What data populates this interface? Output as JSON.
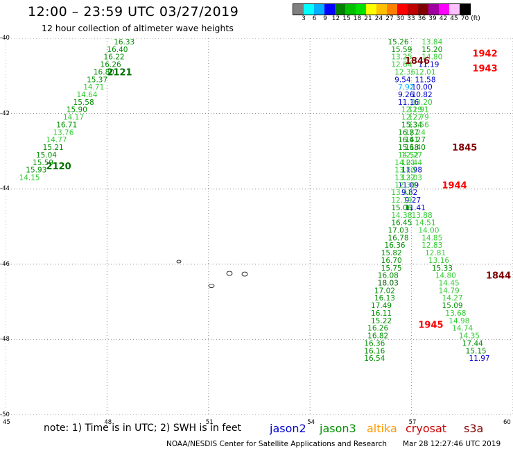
{
  "header": {
    "title": "12:00 – 23:59 UTC 03/27/2019",
    "subtitle": "12 hour collection of altimeter wave heights"
  },
  "legend": {
    "unit": "(ft)",
    "colors": [
      "#808080",
      "#00ffff",
      "#00b0ff",
      "#0000ff",
      "#008000",
      "#00c000",
      "#00e000",
      "#ffff00",
      "#ffc000",
      "#ff8000",
      "#ff0000",
      "#c00000",
      "#800000",
      "#a000a0",
      "#ff00ff",
      "#ffc0ff",
      "#000000"
    ],
    "ticks": [
      "3",
      "6",
      "9",
      "12",
      "15",
      "18",
      "21",
      "24",
      "27",
      "30",
      "33",
      "36",
      "39",
      "42",
      "45",
      "70"
    ]
  },
  "axes": {
    "lon": [
      45,
      48,
      51,
      54,
      57,
      60
    ],
    "lat": [
      -40,
      -42,
      -44,
      -46,
      -48,
      -50
    ]
  },
  "chart_data": {
    "type": "scatter",
    "xlim": [
      45,
      60
    ],
    "ylim": [
      -50,
      -40
    ],
    "grid": true,
    "time_labels": [
      {
        "text": "2121",
        "lon": 48.0,
        "lat": -40.8,
        "color": "#007000"
      },
      {
        "text": "2120",
        "lon": 46.2,
        "lat": -43.3,
        "color": "#007000"
      },
      {
        "text": "1846",
        "lon": 56.8,
        "lat": -40.5,
        "color": "#800000"
      },
      {
        "text": "1942",
        "lon": 58.8,
        "lat": -40.3,
        "color": "#ff0000"
      },
      {
        "text": "1943",
        "lon": 58.8,
        "lat": -40.7,
        "color": "#ff0000"
      },
      {
        "text": "1845",
        "lon": 58.2,
        "lat": -42.8,
        "color": "#800000"
      },
      {
        "text": "1944",
        "lon": 57.9,
        "lat": -43.8,
        "color": "#ff0000"
      },
      {
        "text": "1844",
        "lon": 59.2,
        "lat": -46.2,
        "color": "#800000"
      },
      {
        "text": "1945",
        "lon": 57.2,
        "lat": -47.5,
        "color": "#ff0000"
      }
    ],
    "observations": [
      {
        "lon": 48.2,
        "lat": -40.0,
        "swh": 16.33
      },
      {
        "lon": 48.0,
        "lat": -40.2,
        "swh": 16.4
      },
      {
        "lon": 47.9,
        "lat": -40.4,
        "swh": 16.22
      },
      {
        "lon": 47.8,
        "lat": -40.6,
        "swh": 16.26
      },
      {
        "lon": 47.6,
        "lat": -40.8,
        "swh": 16.8
      },
      {
        "lon": 47.4,
        "lat": -41.0,
        "swh": 15.37
      },
      {
        "lon": 47.3,
        "lat": -41.2,
        "swh": 14.71
      },
      {
        "lon": 47.1,
        "lat": -41.4,
        "swh": 14.64
      },
      {
        "lon": 47.0,
        "lat": -41.6,
        "swh": 15.58
      },
      {
        "lon": 46.8,
        "lat": -41.8,
        "swh": 15.9
      },
      {
        "lon": 46.7,
        "lat": -42.0,
        "swh": 14.17
      },
      {
        "lon": 46.5,
        "lat": -42.2,
        "swh": 16.71
      },
      {
        "lon": 46.4,
        "lat": -42.4,
        "swh": 13.76
      },
      {
        "lon": 46.2,
        "lat": -42.6,
        "swh": 14.77
      },
      {
        "lon": 46.1,
        "lat": -42.8,
        "swh": 15.21
      },
      {
        "lon": 45.9,
        "lat": -43.0,
        "swh": 15.04
      },
      {
        "lon": 45.8,
        "lat": -43.2,
        "swh": 15.59
      },
      {
        "lon": 45.6,
        "lat": -43.4,
        "swh": 15.93
      },
      {
        "lon": 45.4,
        "lat": -43.6,
        "swh": 14.15
      },
      {
        "lon": 57.3,
        "lat": -40.0,
        "swh": 13.84
      },
      {
        "lon": 57.3,
        "lat": -40.2,
        "swh": 15.2
      },
      {
        "lon": 57.3,
        "lat": -40.4,
        "swh": 14.8
      },
      {
        "lon": 57.2,
        "lat": -40.6,
        "swh": 11.19
      },
      {
        "lon": 57.1,
        "lat": -40.8,
        "swh": 12.01
      },
      {
        "lon": 57.1,
        "lat": -41.0,
        "swh": 11.58
      },
      {
        "lon": 57.0,
        "lat": -41.2,
        "swh": 10.0
      },
      {
        "lon": 57.0,
        "lat": -41.4,
        "swh": 10.82
      },
      {
        "lon": 57.0,
        "lat": -41.6,
        "swh": 13.2
      },
      {
        "lon": 56.9,
        "lat": -41.8,
        "swh": 12.91
      },
      {
        "lon": 56.9,
        "lat": -42.0,
        "swh": 12.79
      },
      {
        "lon": 56.9,
        "lat": -42.2,
        "swh": 13.56
      },
      {
        "lon": 56.8,
        "lat": -42.4,
        "swh": 12.24
      },
      {
        "lon": 56.8,
        "lat": -42.6,
        "swh": 16.27
      },
      {
        "lon": 56.8,
        "lat": -42.8,
        "swh": 16.4
      },
      {
        "lon": 56.7,
        "lat": -43.0,
        "swh": 12.27
      },
      {
        "lon": 56.7,
        "lat": -43.2,
        "swh": 12.44
      },
      {
        "lon": 56.7,
        "lat": -43.4,
        "swh": 11.98
      },
      {
        "lon": 56.7,
        "lat": -43.6,
        "swh": 12.03
      },
      {
        "lon": 56.6,
        "lat": -43.8,
        "swh": 11.09
      },
      {
        "lon": 56.7,
        "lat": -44.0,
        "swh": 9.82
      },
      {
        "lon": 56.8,
        "lat": -44.2,
        "swh": 9.27
      },
      {
        "lon": 56.8,
        "lat": -44.4,
        "swh": 11.41
      },
      {
        "lon": 57.0,
        "lat": -44.6,
        "swh": 13.88
      },
      {
        "lon": 57.1,
        "lat": -44.8,
        "swh": 14.51
      },
      {
        "lon": 57.2,
        "lat": -45.0,
        "swh": 14.0
      },
      {
        "lon": 57.3,
        "lat": -45.2,
        "swh": 14.85
      },
      {
        "lon": 57.3,
        "lat": -45.4,
        "swh": 12.83
      },
      {
        "lon": 57.4,
        "lat": -45.6,
        "swh": 12.81
      },
      {
        "lon": 57.5,
        "lat": -45.8,
        "swh": 13.16
      },
      {
        "lon": 57.6,
        "lat": -46.0,
        "swh": 15.33
      },
      {
        "lon": 57.7,
        "lat": -46.2,
        "swh": 14.8
      },
      {
        "lon": 57.8,
        "lat": -46.4,
        "swh": 14.45
      },
      {
        "lon": 57.8,
        "lat": -46.6,
        "swh": 14.79
      },
      {
        "lon": 57.9,
        "lat": -46.8,
        "swh": 14.27
      },
      {
        "lon": 57.9,
        "lat": -47.0,
        "swh": 15.09
      },
      {
        "lon": 58.0,
        "lat": -47.2,
        "swh": 13.68
      },
      {
        "lon": 58.1,
        "lat": -47.4,
        "swh": 14.98
      },
      {
        "lon": 58.2,
        "lat": -47.6,
        "swh": 14.74
      },
      {
        "lon": 58.4,
        "lat": -47.8,
        "swh": 14.35
      },
      {
        "lon": 58.5,
        "lat": -48.0,
        "swh": 17.44
      },
      {
        "lon": 58.6,
        "lat": -48.2,
        "swh": 15.15
      },
      {
        "lon": 58.7,
        "lat": -48.4,
        "swh": 11.97
      },
      {
        "lon": 56.3,
        "lat": -40.0,
        "swh": 15.26
      },
      {
        "lon": 56.4,
        "lat": -40.2,
        "swh": 15.59
      },
      {
        "lon": 56.4,
        "lat": -40.4,
        "swh": 13.25
      },
      {
        "lon": 56.4,
        "lat": -40.6,
        "swh": 12.64
      },
      {
        "lon": 56.5,
        "lat": -40.8,
        "swh": 12.36
      },
      {
        "lon": 56.5,
        "lat": -41.0,
        "swh": 9.54
      },
      {
        "lon": 56.6,
        "lat": -41.2,
        "swh": 7.92
      },
      {
        "lon": 56.6,
        "lat": -41.4,
        "swh": 9.26
      },
      {
        "lon": 56.6,
        "lat": -41.6,
        "swh": 11.16
      },
      {
        "lon": 56.7,
        "lat": -41.8,
        "swh": 12.19
      },
      {
        "lon": 56.7,
        "lat": -42.0,
        "swh": 12.27
      },
      {
        "lon": 56.7,
        "lat": -42.2,
        "swh": 15.34
      },
      {
        "lon": 56.6,
        "lat": -42.4,
        "swh": 16.87
      },
      {
        "lon": 56.6,
        "lat": -42.6,
        "swh": 16.41
      },
      {
        "lon": 56.6,
        "lat": -42.8,
        "swh": 15.18
      },
      {
        "lon": 56.6,
        "lat": -43.0,
        "swh": 14.52
      },
      {
        "lon": 56.5,
        "lat": -43.2,
        "swh": 14.01
      },
      {
        "lon": 56.5,
        "lat": -43.4,
        "swh": 13.8
      },
      {
        "lon": 56.5,
        "lat": -43.6,
        "swh": 13.32
      },
      {
        "lon": 56.5,
        "lat": -43.8,
        "swh": 12.3
      },
      {
        "lon": 56.4,
        "lat": -44.0,
        "swh": 13.41
      },
      {
        "lon": 56.4,
        "lat": -44.2,
        "swh": 12.19
      },
      {
        "lon": 56.4,
        "lat": -44.4,
        "swh": 15.06
      },
      {
        "lon": 56.4,
        "lat": -44.6,
        "swh": 14.38
      },
      {
        "lon": 56.4,
        "lat": -44.8,
        "swh": 16.45
      },
      {
        "lon": 56.3,
        "lat": -45.0,
        "swh": 17.03
      },
      {
        "lon": 56.3,
        "lat": -45.2,
        "swh": 16.78
      },
      {
        "lon": 56.2,
        "lat": -45.4,
        "swh": 16.36
      },
      {
        "lon": 56.1,
        "lat": -45.6,
        "swh": 15.82
      },
      {
        "lon": 56.1,
        "lat": -45.8,
        "swh": 16.7
      },
      {
        "lon": 56.1,
        "lat": -46.0,
        "swh": 15.75
      },
      {
        "lon": 56.0,
        "lat": -46.2,
        "swh": 16.08
      },
      {
        "lon": 56.0,
        "lat": -46.4,
        "swh": 18.03
      },
      {
        "lon": 55.9,
        "lat": -46.6,
        "swh": 17.02
      },
      {
        "lon": 55.9,
        "lat": -46.8,
        "swh": 16.13
      },
      {
        "lon": 55.8,
        "lat": -47.0,
        "swh": 17.49
      },
      {
        "lon": 55.8,
        "lat": -47.2,
        "swh": 16.11
      },
      {
        "lon": 55.8,
        "lat": -47.4,
        "swh": 15.22
      },
      {
        "lon": 55.7,
        "lat": -47.6,
        "swh": 16.26
      },
      {
        "lon": 55.7,
        "lat": -47.8,
        "swh": 16.82
      },
      {
        "lon": 55.6,
        "lat": -48.0,
        "swh": 16.36
      },
      {
        "lon": 55.6,
        "lat": -48.2,
        "swh": 16.16
      },
      {
        "lon": 55.6,
        "lat": -48.4,
        "swh": 16.54
      }
    ]
  },
  "footer": {
    "note": "note:  1) Time is in UTC;  2) SWH is in feet",
    "satellites": [
      {
        "name": "jason2",
        "color": "#0000cc"
      },
      {
        "name": "jason3",
        "color": "#009000"
      },
      {
        "name": "altika",
        "color": "#ff9900"
      },
      {
        "name": "cryosat",
        "color": "#cc0000"
      },
      {
        "name": "s3a",
        "color": "#800000"
      }
    ],
    "credit": "NOAA/NESDIS Center for Satellite Applications and Research",
    "stamp": "Mar 28 12:27:46 UTC 2019"
  }
}
